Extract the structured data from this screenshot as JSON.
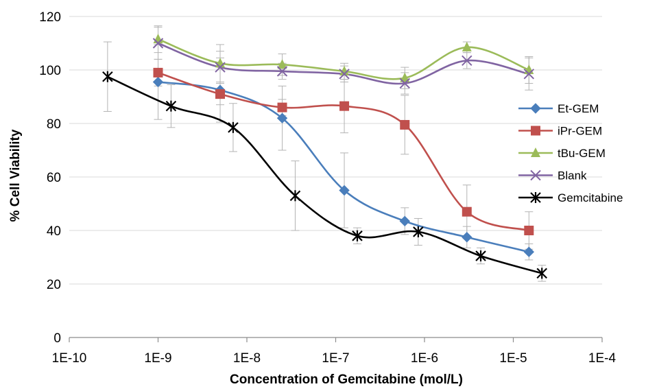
{
  "chart_data": {
    "type": "line",
    "title": "",
    "xlabel": "Concentration of Gemcitabine (mol/L)",
    "ylabel": "% Cell Viability",
    "x_scale": "log",
    "xlim": [
      1e-10,
      0.0001
    ],
    "ylim": [
      0,
      120
    ],
    "x_tick_labels": [
      "1E-10",
      "1E-9",
      "1E-8",
      "1E-7",
      "1E-6",
      "1E-5",
      "1E-4"
    ],
    "y_tick_labels": [
      "0",
      "20",
      "40",
      "60",
      "80",
      "100",
      "120"
    ],
    "grid": "horizontal",
    "legend_position": "right",
    "series": [
      {
        "name": "Et-GEM",
        "color": "#4a7ebb",
        "marker": "diamond",
        "x": [
          1e-09,
          5e-09,
          2.5e-08,
          1.25e-07,
          6e-07,
          3e-06,
          1.5e-05
        ],
        "y": [
          95.5,
          92.5,
          82,
          55,
          43.5,
          37.5,
          32
        ],
        "error": [
          14,
          12,
          12,
          14,
          5,
          4,
          3
        ]
      },
      {
        "name": "iPr-GEM",
        "color": "#c0504d",
        "marker": "square",
        "x": [
          1e-09,
          5e-09,
          2.5e-08,
          1.25e-07,
          6e-07,
          3e-06,
          1.5e-05
        ],
        "y": [
          99,
          91,
          86,
          86.5,
          79.5,
          47,
          40
        ],
        "error": [
          5,
          4,
          3,
          10,
          11,
          10,
          7
        ]
      },
      {
        "name": "tBu-GEM",
        "color": "#9bbb59",
        "marker": "triangle",
        "x": [
          1e-09,
          5e-09,
          2.5e-08,
          1.25e-07,
          6e-07,
          3e-06,
          1.5e-05
        ],
        "y": [
          111.5,
          102.5,
          102,
          99.5,
          97,
          108.5,
          100
        ],
        "error": [
          5,
          7,
          4,
          3,
          4,
          2,
          5
        ]
      },
      {
        "name": "Blank",
        "color": "#8064a2",
        "marker": "x",
        "x": [
          1e-09,
          5e-09,
          2.5e-08,
          1.25e-07,
          6e-07,
          3e-06,
          1.5e-05
        ],
        "y": [
          110,
          101,
          99.5,
          98.5,
          95,
          103.5,
          98.5
        ],
        "error": [
          6,
          6,
          3,
          3,
          4,
          3,
          6
        ]
      },
      {
        "name": "Gemcitabine",
        "color": "#000000",
        "marker": "asterisk",
        "x": [
          2.7e-10,
          1.4e-09,
          7e-09,
          3.5e-08,
          1.75e-07,
          8.5e-07,
          4.3e-06,
          2.1e-05
        ],
        "y": [
          97.5,
          86.5,
          78.5,
          53,
          38,
          39.5,
          30.5,
          24
        ],
        "error": [
          13,
          8,
          9,
          13,
          3,
          5,
          3,
          3
        ]
      }
    ]
  }
}
